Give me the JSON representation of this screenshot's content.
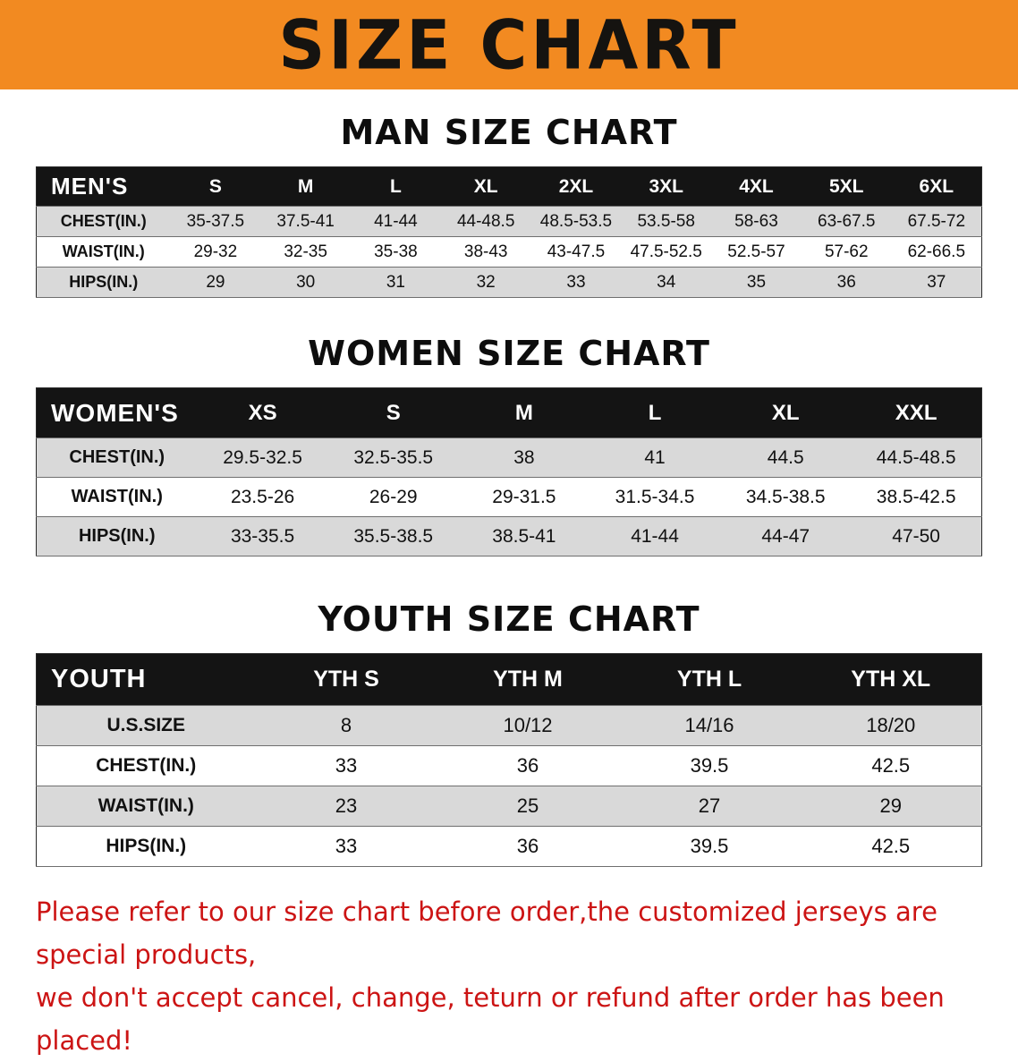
{
  "banner": {
    "title": "SIZE CHART"
  },
  "colors": {
    "banner_bg": "#f28a21",
    "header_bg": "#141414",
    "row_shaded_bg": "#d9d9d9",
    "notice_color": "#cc1414"
  },
  "sections": [
    {
      "heading": "MAN SIZE CHART",
      "table": {
        "header_label": "MEN'S",
        "columns": [
          "S",
          "M",
          "L",
          "XL",
          "2XL",
          "3XL",
          "4XL",
          "5XL",
          "6XL"
        ],
        "rows": [
          {
            "label": "CHEST(IN.)",
            "values": [
              "35-37.5",
              "37.5-41",
              "41-44",
              "44-48.5",
              "48.5-53.5",
              "53.5-58",
              "58-63",
              "63-67.5",
              "67.5-72"
            ]
          },
          {
            "label": "WAIST(IN.)",
            "values": [
              "29-32",
              "32-35",
              "35-38",
              "38-43",
              "43-47.5",
              "47.5-52.5",
              "52.5-57",
              "57-62",
              "62-66.5"
            ]
          },
          {
            "label": "HIPS(IN.)",
            "values": [
              "29",
              "30",
              "31",
              "32",
              "33",
              "34",
              "35",
              "36",
              "37"
            ]
          }
        ]
      }
    },
    {
      "heading": "WOMEN SIZE CHART",
      "table": {
        "header_label": "WOMEN'S",
        "columns": [
          "XS",
          "S",
          "M",
          "L",
          "XL",
          "XXL"
        ],
        "rows": [
          {
            "label": "CHEST(IN.)",
            "values": [
              "29.5-32.5",
              "32.5-35.5",
              "38",
              "41",
              "44.5",
              "44.5-48.5"
            ]
          },
          {
            "label": "WAIST(IN.)",
            "values": [
              "23.5-26",
              "26-29",
              "29-31.5",
              "31.5-34.5",
              "34.5-38.5",
              "38.5-42.5"
            ]
          },
          {
            "label": "HIPS(IN.)",
            "values": [
              "33-35.5",
              "35.5-38.5",
              "38.5-41",
              "41-44",
              "44-47",
              "47-50"
            ]
          }
        ]
      }
    },
    {
      "heading": "YOUTH SIZE CHART",
      "table": {
        "header_label": "YOUTH",
        "columns": [
          "YTH S",
          "YTH M",
          "YTH L",
          "YTH XL"
        ],
        "rows": [
          {
            "label": "U.S.SIZE",
            "values": [
              "8",
              "10/12",
              "14/16",
              "18/20"
            ]
          },
          {
            "label": "CHEST(IN.)",
            "values": [
              "33",
              "36",
              "39.5",
              "42.5"
            ]
          },
          {
            "label": "WAIST(IN.)",
            "values": [
              "23",
              "25",
              "27",
              "29"
            ]
          },
          {
            "label": "HIPS(IN.)",
            "values": [
              "33",
              "36",
              "39.5",
              "42.5"
            ]
          }
        ]
      }
    }
  ],
  "footer": {
    "line1": "Please refer to our size chart before order,the customized jerseys are special products,",
    "line2": "we don't accept cancel, change, teturn or refund after order has been placed!"
  }
}
